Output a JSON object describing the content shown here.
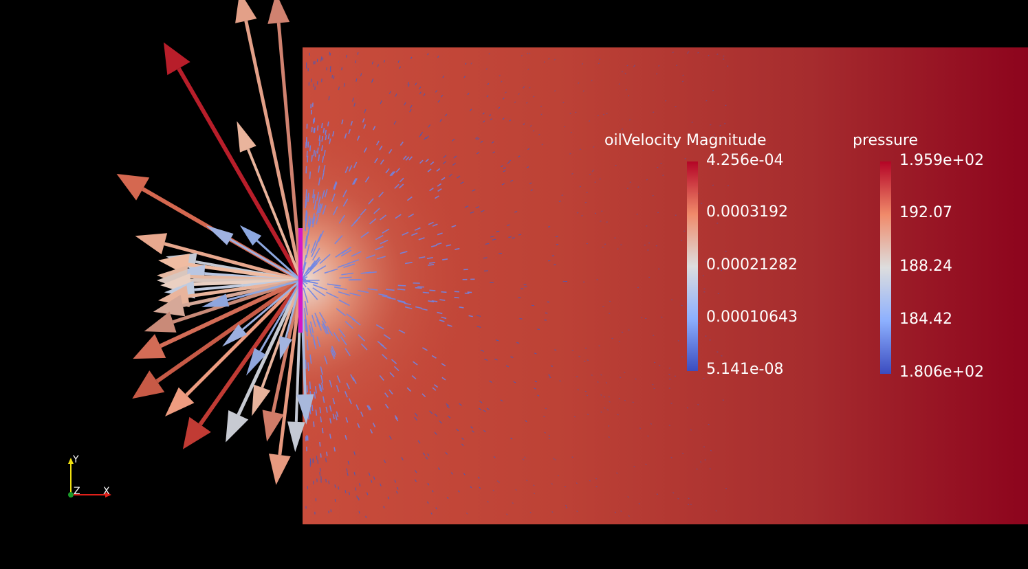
{
  "scene": {
    "background_color": "#000000",
    "domain_colors": [
      "#c64a3a",
      "#b83a32",
      "#a42a2b",
      "#8b0018"
    ],
    "well_color": "#d417c8"
  },
  "legends": {
    "velocity": {
      "title": "oilVelocity Magnitude",
      "labels": [
        "4.256e-04",
        "0.0003192",
        "0.00021282",
        "0.00010643",
        "5.141e-08"
      ]
    },
    "pressure": {
      "title": "pressure",
      "labels": [
        "1.959e+02",
        "192.07",
        "188.24",
        "184.42",
        "1.806e+02"
      ]
    },
    "colormap": [
      "#b40426",
      "#f08a6a",
      "#dddddd",
      "#8db0fe",
      "#3b4cc0"
    ]
  },
  "axes": {
    "y": "Y",
    "z": "Z",
    "x": "X",
    "x_color": "#e0201a",
    "y_color": "#f0e010",
    "z_color": "#1a9a2a"
  }
}
